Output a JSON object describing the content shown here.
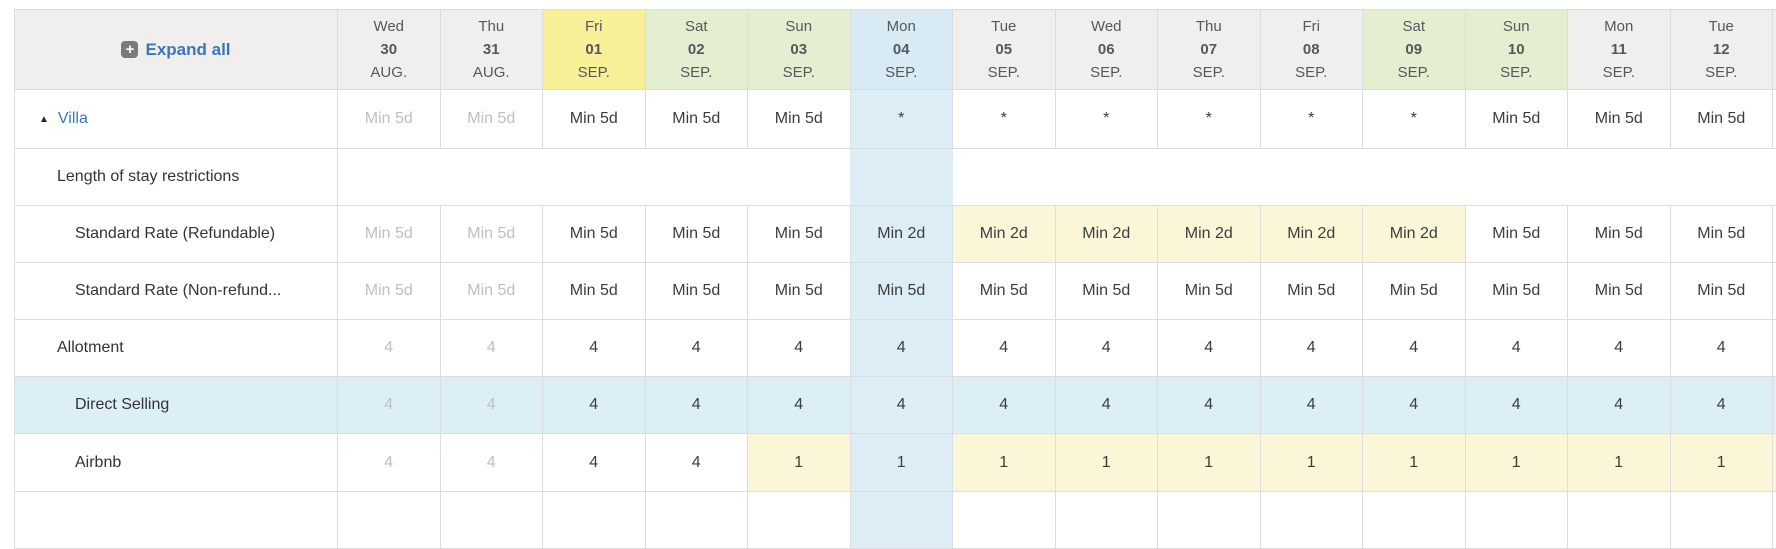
{
  "header": {
    "expand_all_label": "Expand all"
  },
  "colors": {
    "link": "#3878b8",
    "header_bg": "#f0efed",
    "header_friday": "#f7f098",
    "header_weekend": "#e4efd2",
    "header_selected": "#d8eaf4",
    "column_selected": "#dcedf5",
    "cell_modified": "#fcf6d8",
    "row_selected": "#dceef6",
    "border": "#dddddd",
    "muted_text": "#bfbfbf"
  },
  "columns": [
    {
      "day": "Wed",
      "date": "30",
      "month": "AUG.",
      "past": true
    },
    {
      "day": "Thu",
      "date": "31",
      "month": "AUG.",
      "past": true
    },
    {
      "day": "Fri",
      "date": "01",
      "month": "SEP.",
      "header_style": "yellow"
    },
    {
      "day": "Sat",
      "date": "02",
      "month": "SEP.",
      "header_style": "green"
    },
    {
      "day": "Sun",
      "date": "03",
      "month": "SEP.",
      "header_style": "green"
    },
    {
      "day": "Mon",
      "date": "04",
      "month": "SEP.",
      "header_style": "blue",
      "selected": true
    },
    {
      "day": "Tue",
      "date": "05",
      "month": "SEP."
    },
    {
      "day": "Wed",
      "date": "06",
      "month": "SEP."
    },
    {
      "day": "Thu",
      "date": "07",
      "month": "SEP."
    },
    {
      "day": "Fri",
      "date": "08",
      "month": "SEP."
    },
    {
      "day": "Sat",
      "date": "09",
      "month": "SEP.",
      "header_style": "green"
    },
    {
      "day": "Sun",
      "date": "10",
      "month": "SEP.",
      "header_style": "green"
    },
    {
      "day": "Mon",
      "date": "11",
      "month": "SEP."
    },
    {
      "day": "Tue",
      "date": "12",
      "month": "SEP."
    },
    {
      "day": "",
      "date": "",
      "month": "",
      "partial": true
    }
  ],
  "rows": [
    {
      "label": "Villa",
      "kind": "room",
      "indent": 0,
      "cells": [
        {
          "text": "Min 5d",
          "muted": true
        },
        {
          "text": "Min 5d",
          "muted": true
        },
        {
          "text": "Min 5d"
        },
        {
          "text": "Min 5d"
        },
        {
          "text": "Min 5d"
        },
        {
          "text": "*"
        },
        {
          "text": "*"
        },
        {
          "text": "*"
        },
        {
          "text": "*"
        },
        {
          "text": "*"
        },
        {
          "text": "*"
        },
        {
          "text": "Min 5d"
        },
        {
          "text": "Min 5d"
        },
        {
          "text": "Min 5d"
        },
        {
          "text": ""
        }
      ]
    },
    {
      "label": "Length of stay restrictions",
      "kind": "section",
      "indent": 1,
      "cells": [
        {
          "text": ""
        },
        {
          "text": ""
        },
        {
          "text": ""
        },
        {
          "text": ""
        },
        {
          "text": ""
        },
        {
          "text": ""
        },
        {
          "text": ""
        },
        {
          "text": ""
        },
        {
          "text": ""
        },
        {
          "text": ""
        },
        {
          "text": ""
        },
        {
          "text": ""
        },
        {
          "text": ""
        },
        {
          "text": ""
        },
        {
          "text": ""
        }
      ]
    },
    {
      "label": "Standard Rate (Refundable)",
      "kind": "rate",
      "indent": 2,
      "cells": [
        {
          "text": "Min 5d",
          "muted": true
        },
        {
          "text": "Min 5d",
          "muted": true
        },
        {
          "text": "Min 5d"
        },
        {
          "text": "Min 5d"
        },
        {
          "text": "Min 5d"
        },
        {
          "text": "Min 2d"
        },
        {
          "text": "Min 2d",
          "modified": true
        },
        {
          "text": "Min 2d",
          "modified": true
        },
        {
          "text": "Min 2d",
          "modified": true
        },
        {
          "text": "Min 2d",
          "modified": true
        },
        {
          "text": "Min 2d",
          "modified": true
        },
        {
          "text": "Min 5d"
        },
        {
          "text": "Min 5d"
        },
        {
          "text": "Min 5d"
        },
        {
          "text": ""
        }
      ]
    },
    {
      "label": "Standard Rate (Non-refund...",
      "kind": "rate",
      "indent": 2,
      "cells": [
        {
          "text": "Min 5d",
          "muted": true
        },
        {
          "text": "Min 5d",
          "muted": true
        },
        {
          "text": "Min 5d"
        },
        {
          "text": "Min 5d"
        },
        {
          "text": "Min 5d"
        },
        {
          "text": "Min 5d"
        },
        {
          "text": "Min 5d"
        },
        {
          "text": "Min 5d"
        },
        {
          "text": "Min 5d"
        },
        {
          "text": "Min 5d"
        },
        {
          "text": "Min 5d"
        },
        {
          "text": "Min 5d"
        },
        {
          "text": "Min 5d"
        },
        {
          "text": "Min 5d"
        },
        {
          "text": ""
        }
      ]
    },
    {
      "label": "Allotment",
      "kind": "inventory",
      "indent": 1,
      "cells": [
        {
          "text": "4",
          "muted": true
        },
        {
          "text": "4",
          "muted": true
        },
        {
          "text": "4"
        },
        {
          "text": "4"
        },
        {
          "text": "4"
        },
        {
          "text": "4"
        },
        {
          "text": "4"
        },
        {
          "text": "4"
        },
        {
          "text": "4"
        },
        {
          "text": "4"
        },
        {
          "text": "4"
        },
        {
          "text": "4"
        },
        {
          "text": "4"
        },
        {
          "text": "4"
        },
        {
          "text": ""
        }
      ]
    },
    {
      "label": "Direct Selling",
      "kind": "channel",
      "indent": 2,
      "highlight": "blue",
      "cells": [
        {
          "text": "4",
          "muted": true
        },
        {
          "text": "4",
          "muted": true
        },
        {
          "text": "4"
        },
        {
          "text": "4"
        },
        {
          "text": "4"
        },
        {
          "text": "4"
        },
        {
          "text": "4"
        },
        {
          "text": "4"
        },
        {
          "text": "4"
        },
        {
          "text": "4"
        },
        {
          "text": "4"
        },
        {
          "text": "4"
        },
        {
          "text": "4"
        },
        {
          "text": "4"
        },
        {
          "text": ""
        }
      ]
    },
    {
      "label": "Airbnb",
      "kind": "channel",
      "indent": 2,
      "cells": [
        {
          "text": "4",
          "muted": true
        },
        {
          "text": "4",
          "muted": true
        },
        {
          "text": "4"
        },
        {
          "text": "4"
        },
        {
          "text": "1",
          "modified": true
        },
        {
          "text": "1"
        },
        {
          "text": "1",
          "modified": true
        },
        {
          "text": "1",
          "modified": true
        },
        {
          "text": "1",
          "modified": true
        },
        {
          "text": "1",
          "modified": true
        },
        {
          "text": "1",
          "modified": true
        },
        {
          "text": "1",
          "modified": true
        },
        {
          "text": "1",
          "modified": true
        },
        {
          "text": "1",
          "modified": true
        },
        {
          "text": "",
          "modified": true
        }
      ]
    },
    {
      "label": "",
      "kind": "stub",
      "indent": 0,
      "cells": [
        {
          "text": ""
        },
        {
          "text": ""
        },
        {
          "text": ""
        },
        {
          "text": ""
        },
        {
          "text": ""
        },
        {
          "text": ""
        },
        {
          "text": ""
        },
        {
          "text": ""
        },
        {
          "text": ""
        },
        {
          "text": ""
        },
        {
          "text": ""
        },
        {
          "text": ""
        },
        {
          "text": ""
        },
        {
          "text": ""
        },
        {
          "text": ""
        }
      ]
    }
  ]
}
